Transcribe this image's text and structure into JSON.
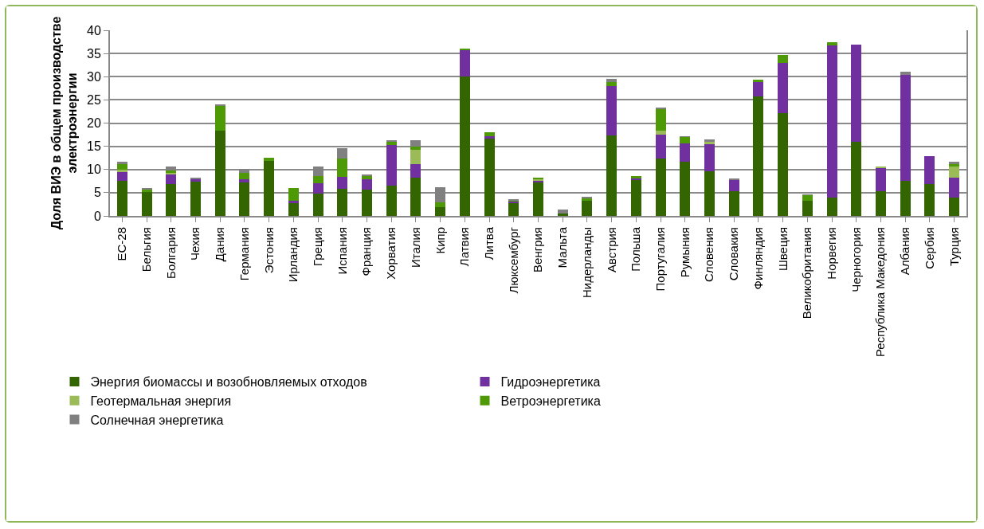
{
  "chart_data": {
    "type": "bar",
    "stacked": true,
    "ylabel": "Доля ВИЭ в общем производстве электроэнергии",
    "categories": [
      "ЕС-28",
      "Бельгия",
      "Болгария",
      "Чехия",
      "Дания",
      "Германия",
      "Эстония",
      "Ирландия",
      "Греция",
      "Испания",
      "Франция",
      "Хорватия",
      "Италия",
      "Кипр",
      "Латвия",
      "Литва",
      "Люксембург",
      "Венгрия",
      "Мальта",
      "Нидерланды",
      "Австрия",
      "Польша",
      "Португалия",
      "Румыния",
      "Словения",
      "Словакия",
      "Финляндия",
      "Швеция",
      "Великобритания",
      "Норвегия",
      "Черногория",
      "Республика Македония",
      "Албания",
      "Сербия",
      "Турция"
    ],
    "series": [
      {
        "name": "Энергия биомассы и возобновляемых отходов",
        "color": "#336600",
        "values": [
          7.6,
          5.1,
          6.9,
          7.3,
          18.4,
          7.2,
          11.9,
          2.8,
          4.8,
          5.8,
          5.7,
          6.5,
          8.3,
          1.9,
          30.1,
          16.6,
          2.9,
          7.3,
          0.6,
          3.3,
          17.3,
          7.8,
          12.3,
          11.7,
          9.6,
          5.3,
          25.7,
          22.2,
          3.3,
          4.0,
          16.0,
          5.3,
          7.6,
          6.8,
          4.0
        ]
      },
      {
        "name": "Гидроэнергетика",
        "color": "#7030a0",
        "values": [
          1.9,
          null,
          2.1,
          0.6,
          0,
          0.7,
          0,
          0.4,
          2.2,
          2.6,
          2.2,
          8.8,
          2.8,
          0,
          5.7,
          0.6,
          0.2,
          0.2,
          0,
          0,
          10.7,
          0.2,
          5.2,
          4.0,
          5.8,
          2.5,
          3.3,
          10.7,
          null,
          32.8,
          20.9,
          5.0,
          22.8,
          6.0,
          4.3
        ]
      },
      {
        "name": "Геотермальная энергия",
        "color": "#9bbb59",
        "values": [
          0.4,
          0,
          0.2,
          0,
          0,
          0,
          0,
          0,
          0,
          0,
          0,
          0,
          3.2,
          0,
          0,
          0,
          0,
          0.4,
          0,
          0,
          0,
          0,
          0.9,
          0,
          0.6,
          0,
          0,
          0,
          0,
          0,
          0,
          0.3,
          0,
          0,
          2.4
        ]
      },
      {
        "name": "Ветроэнергетика",
        "color": "#4e9a06",
        "values": [
          1.2,
          0.6,
          0.6,
          null,
          5.3,
          1.3,
          0.7,
          2.8,
          1.5,
          3.9,
          0.7,
          0.8,
          0.6,
          1.0,
          0.2,
          0.9,
          0.1,
          0.3,
          0,
          0.6,
          0.8,
          0.5,
          4.6,
          1.3,
          0,
          0,
          0.3,
          1.7,
          1.2,
          0.6,
          0,
          0,
          0,
          0,
          0.4
        ]
      },
      {
        "name": "Солнечная энергетика",
        "color": "#808080",
        "values": [
          0.6,
          0.3,
          0.8,
          0.4,
          0.4,
          1.0,
          0,
          0,
          2.1,
          2.3,
          0.3,
          0.1,
          1.4,
          3.2,
          0,
          0,
          0.4,
          0,
          0.8,
          0.1,
          0.7,
          0,
          0.4,
          0.1,
          0.4,
          0.2,
          0,
          0,
          0.1,
          0,
          0,
          0,
          0.6,
          0,
          0.6
        ]
      }
    ],
    "ylim": [
      0,
      40
    ],
    "yticks": [
      0,
      5,
      10,
      15,
      20,
      25,
      30,
      35,
      40
    ],
    "grid": "y",
    "legend": "bottom"
  }
}
